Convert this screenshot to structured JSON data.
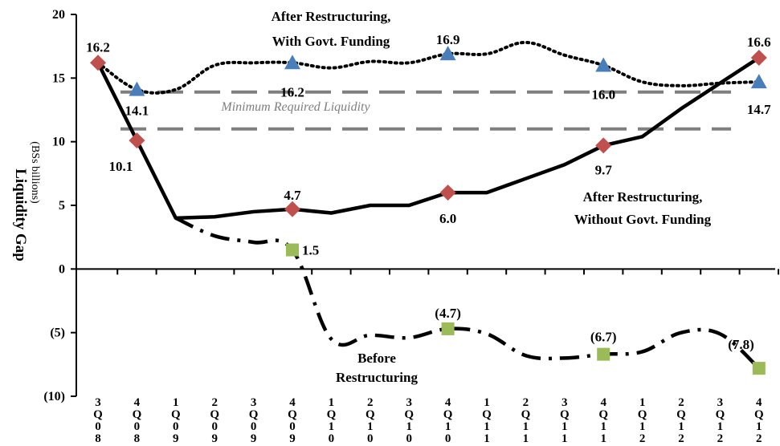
{
  "chart_data": {
    "type": "line",
    "ylabel": "Liquidity Gap",
    "yunit": "(BSs billions)",
    "ylim": [
      -10,
      20
    ],
    "yticks": [
      20,
      15,
      10,
      5,
      0,
      -5,
      -10
    ],
    "ytick_labels": [
      "20",
      "15",
      "10",
      "5",
      "0",
      "(5)",
      "(10)"
    ],
    "categories": [
      "3Q08",
      "4Q08",
      "1Q09",
      "2Q09",
      "3Q09",
      "4Q09",
      "1Q10",
      "2Q10",
      "3Q10",
      "4Q10",
      "1Q11",
      "2Q11",
      "3Q11",
      "4Q11",
      "1Q12",
      "2Q12",
      "3Q12",
      "4Q12"
    ],
    "grid": false,
    "series": [
      {
        "name": "After Restructuring, With Govt. Funding",
        "style": "dotted",
        "color": "#000000",
        "values": [
          16.2,
          14.1,
          14.1,
          16.0,
          16.2,
          16.2,
          15.8,
          16.3,
          16.2,
          16.9,
          16.9,
          17.8,
          16.8,
          16.0,
          14.7,
          14.4,
          14.6,
          14.7
        ],
        "markers": [
          {
            "i": 1,
            "value": 14.1,
            "label": "14.1"
          },
          {
            "i": 5,
            "value": 16.2,
            "label": "16.2"
          },
          {
            "i": 9,
            "value": 16.9,
            "label": "16.9"
          },
          {
            "i": 13,
            "value": 16.0,
            "label": "16.0"
          },
          {
            "i": 17,
            "value": 14.7,
            "label": "14.7"
          }
        ],
        "marker_shape": "triangle",
        "marker_color": "#4a7ebb"
      },
      {
        "name": "After Restructuring, Without Govt. Funding",
        "style": "solid",
        "color": "#000000",
        "values": [
          16.2,
          10.1,
          4.0,
          4.1,
          4.5,
          4.7,
          4.4,
          5.0,
          5.0,
          6.0,
          6.0,
          7.1,
          8.2,
          9.7,
          10.4,
          12.6,
          14.6,
          16.6
        ],
        "markers": [
          {
            "i": 0,
            "value": 16.2,
            "label": "16.2"
          },
          {
            "i": 1,
            "value": 10.1,
            "label": "10.1"
          },
          {
            "i": 5,
            "value": 4.7,
            "label": "4.7"
          },
          {
            "i": 9,
            "value": 6.0,
            "label": "6.0"
          },
          {
            "i": 13,
            "value": 9.7,
            "label": "9.7"
          },
          {
            "i": 17,
            "value": 16.6,
            "label": "16.6"
          }
        ],
        "marker_shape": "diamond",
        "marker_color": "#c0504d"
      },
      {
        "name": "Before Restructuring",
        "style": "dashdot",
        "color": "#000000",
        "values": [
          null,
          null,
          4.0,
          2.6,
          2.1,
          1.5,
          -5.5,
          -5.2,
          -5.4,
          -4.7,
          -5.1,
          -6.8,
          -7.0,
          -6.7,
          -6.5,
          -5.0,
          -5.1,
          -7.8
        ],
        "markers": [
          {
            "i": 5,
            "value": 1.5,
            "label": "1.5"
          },
          {
            "i": 9,
            "value": -4.7,
            "label": "(4.7)"
          },
          {
            "i": 13,
            "value": -6.7,
            "label": "(6.7)"
          },
          {
            "i": 17,
            "value": -7.8,
            "label": "(7.8)"
          }
        ],
        "marker_shape": "square",
        "marker_color": "#9bbb59"
      }
    ],
    "reference_lines": [
      {
        "value": 13.9,
        "color": "#7f7f7f",
        "style": "dashed"
      },
      {
        "value": 11.0,
        "color": "#7f7f7f",
        "style": "dashed"
      }
    ],
    "annotations": {
      "with_funding_line1": "After Restructuring,",
      "with_funding_line2": "With Govt. Funding",
      "minimum": "Minimum Required Liquidity",
      "without_funding_line1": "After Restructuring,",
      "without_funding_line2": "Without Govt. Funding",
      "before_line1": "Before",
      "before_line2": "Restructuring"
    }
  }
}
